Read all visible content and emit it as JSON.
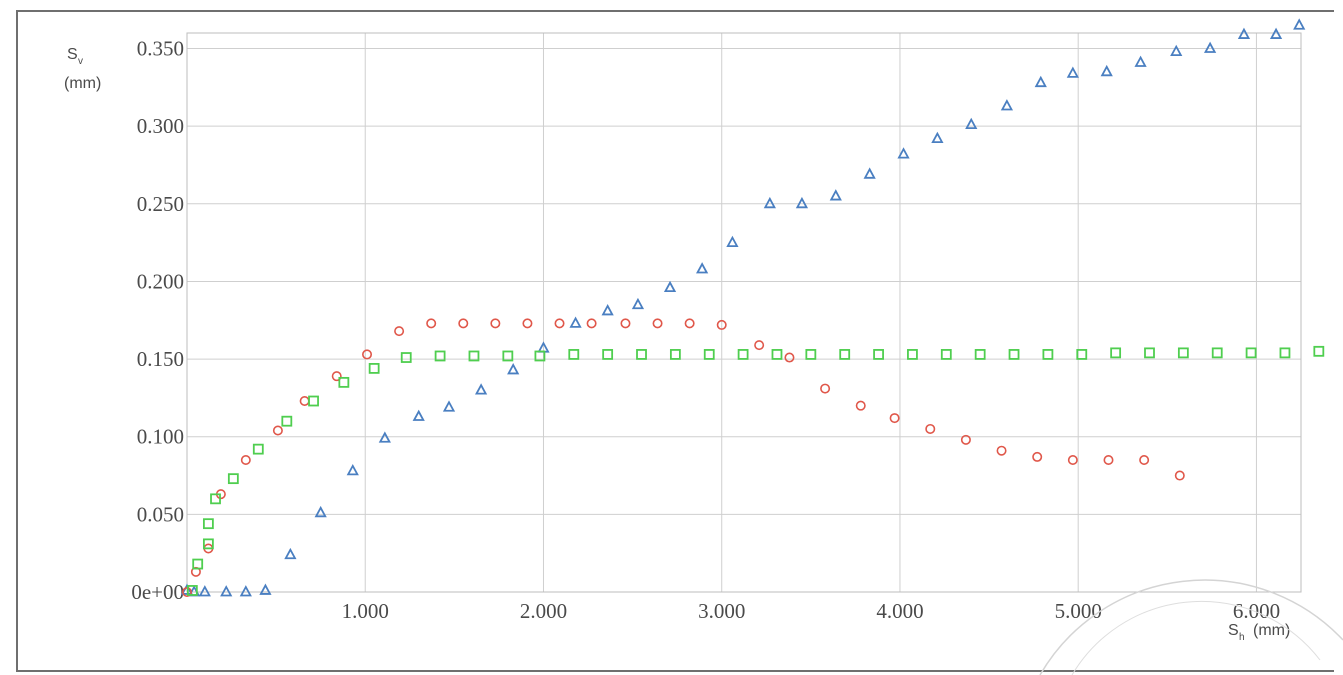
{
  "chart_data": {
    "type": "scatter",
    "xlabel": {
      "main": "S",
      "sub": "h",
      "unit": "(mm)"
    },
    "ylabel": {
      "main": "S",
      "sub": "v",
      "unit": "(mm)"
    },
    "xlim": [
      0,
      6.25
    ],
    "ylim": [
      0,
      0.36
    ],
    "x_ticks": [
      {
        "value": 1.0,
        "label": "1.000"
      },
      {
        "value": 2.0,
        "label": "2.000"
      },
      {
        "value": 3.0,
        "label": "3.000"
      },
      {
        "value": 4.0,
        "label": "4.000"
      },
      {
        "value": 5.0,
        "label": "5.000"
      },
      {
        "value": 6.0,
        "label": "6.000"
      }
    ],
    "y_ticks": [
      {
        "value": 0,
        "label": "0e+00"
      },
      {
        "value": 0.05,
        "label": "0.050"
      },
      {
        "value": 0.1,
        "label": "0.100"
      },
      {
        "value": 0.15,
        "label": "0.150"
      },
      {
        "value": 0.2,
        "label": "0.200"
      },
      {
        "value": 0.25,
        "label": "0.250"
      },
      {
        "value": 0.3,
        "label": "0.300"
      },
      {
        "value": 0.35,
        "label": "0.350"
      }
    ],
    "grid": true,
    "series": [
      {
        "marker": "triangle",
        "color": "#4a7fc1",
        "points": [
          [
            0.0,
            0.001
          ],
          [
            0.04,
            0.0
          ],
          [
            0.1,
            0.0
          ],
          [
            0.22,
            0.0
          ],
          [
            0.33,
            0.0
          ],
          [
            0.44,
            0.001
          ],
          [
            0.58,
            0.024
          ],
          [
            0.75,
            0.051
          ],
          [
            0.93,
            0.078
          ],
          [
            1.11,
            0.099
          ],
          [
            1.3,
            0.113
          ],
          [
            1.47,
            0.119
          ],
          [
            1.65,
            0.13
          ],
          [
            1.83,
            0.143
          ],
          [
            2.0,
            0.157
          ],
          [
            2.18,
            0.173
          ],
          [
            2.36,
            0.181
          ],
          [
            2.53,
            0.185
          ],
          [
            2.71,
            0.196
          ],
          [
            2.89,
            0.208
          ],
          [
            3.06,
            0.225
          ],
          [
            3.27,
            0.25
          ],
          [
            3.45,
            0.25
          ],
          [
            3.64,
            0.255
          ],
          [
            3.83,
            0.269
          ],
          [
            4.02,
            0.282
          ],
          [
            4.21,
            0.292
          ],
          [
            4.4,
            0.301
          ],
          [
            4.6,
            0.313
          ],
          [
            4.79,
            0.328
          ],
          [
            4.97,
            0.334
          ],
          [
            5.16,
            0.335
          ],
          [
            5.35,
            0.341
          ],
          [
            5.55,
            0.348
          ],
          [
            5.74,
            0.35
          ],
          [
            5.93,
            0.359
          ],
          [
            6.11,
            0.359
          ],
          [
            6.24,
            0.365
          ]
        ]
      },
      {
        "marker": "circle",
        "color": "#e0574a",
        "points": [
          [
            0.0,
            0.0
          ],
          [
            0.05,
            0.013
          ],
          [
            0.12,
            0.028
          ],
          [
            0.19,
            0.063
          ],
          [
            0.33,
            0.085
          ],
          [
            0.51,
            0.104
          ],
          [
            0.66,
            0.123
          ],
          [
            0.84,
            0.139
          ],
          [
            1.01,
            0.153
          ],
          [
            1.19,
            0.168
          ],
          [
            1.37,
            0.173
          ],
          [
            1.55,
            0.173
          ],
          [
            1.73,
            0.173
          ],
          [
            1.91,
            0.173
          ],
          [
            2.09,
            0.173
          ],
          [
            2.27,
            0.173
          ],
          [
            2.46,
            0.173
          ],
          [
            2.64,
            0.173
          ],
          [
            2.82,
            0.173
          ],
          [
            3.0,
            0.172
          ],
          [
            3.21,
            0.159
          ],
          [
            3.38,
            0.151
          ],
          [
            3.58,
            0.131
          ],
          [
            3.78,
            0.12
          ],
          [
            3.97,
            0.112
          ],
          [
            4.17,
            0.105
          ],
          [
            4.37,
            0.098
          ],
          [
            4.57,
            0.091
          ],
          [
            4.77,
            0.087
          ],
          [
            4.97,
            0.085
          ],
          [
            5.17,
            0.085
          ],
          [
            5.37,
            0.085
          ],
          [
            5.57,
            0.075
          ]
        ]
      },
      {
        "marker": "square",
        "color": "#4fce4f",
        "points": [
          [
            0.03,
            0.001
          ],
          [
            0.06,
            0.018
          ],
          [
            0.12,
            0.031
          ],
          [
            0.12,
            0.044
          ],
          [
            0.16,
            0.06
          ],
          [
            0.26,
            0.073
          ],
          [
            0.4,
            0.092
          ],
          [
            0.56,
            0.11
          ],
          [
            0.71,
            0.123
          ],
          [
            0.88,
            0.135
          ],
          [
            1.05,
            0.144
          ],
          [
            1.23,
            0.151
          ],
          [
            1.42,
            0.152
          ],
          [
            1.61,
            0.152
          ],
          [
            1.8,
            0.152
          ],
          [
            1.98,
            0.152
          ],
          [
            2.17,
            0.153
          ],
          [
            2.36,
            0.153
          ],
          [
            2.55,
            0.153
          ],
          [
            2.74,
            0.153
          ],
          [
            2.93,
            0.153
          ],
          [
            3.12,
            0.153
          ],
          [
            3.31,
            0.153
          ],
          [
            3.5,
            0.153
          ],
          [
            3.69,
            0.153
          ],
          [
            3.88,
            0.153
          ],
          [
            4.07,
            0.153
          ],
          [
            4.26,
            0.153
          ],
          [
            4.45,
            0.153
          ],
          [
            4.64,
            0.153
          ],
          [
            4.83,
            0.153
          ],
          [
            5.02,
            0.153
          ],
          [
            5.21,
            0.154
          ],
          [
            5.4,
            0.154
          ],
          [
            5.59,
            0.154
          ],
          [
            5.78,
            0.154
          ],
          [
            5.97,
            0.154
          ],
          [
            6.16,
            0.154
          ],
          [
            6.35,
            0.155
          ]
        ]
      }
    ]
  }
}
